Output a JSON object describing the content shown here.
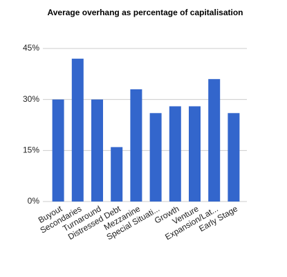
{
  "chart_data": {
    "type": "bar",
    "title": "Average overhang as percentage of capitalisation",
    "categories": [
      "Buyout",
      "Secondaries",
      "Turnaround",
      "Distressed Debt",
      "Mezzanine",
      "Special Situati...",
      "Growth",
      "Venture",
      "Expansion/Lat...",
      "Early Stage"
    ],
    "values": [
      30,
      42,
      30,
      16,
      33,
      26,
      28,
      28,
      36,
      26
    ],
    "color": "#3366cc",
    "ylim": [
      0,
      45
    ],
    "yticks": [
      {
        "value": 0,
        "label": "0%"
      },
      {
        "value": 15,
        "label": "15%"
      },
      {
        "value": 30,
        "label": "30%"
      },
      {
        "value": 45,
        "label": "45%"
      }
    ],
    "grid": true
  }
}
